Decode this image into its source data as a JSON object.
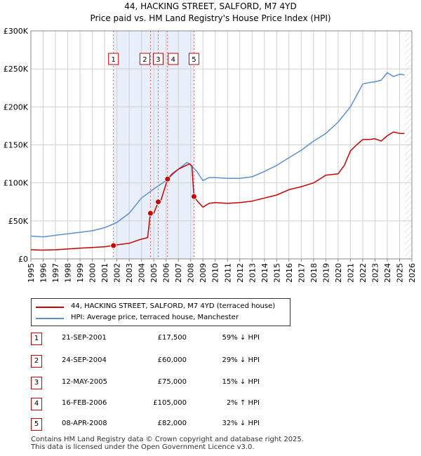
{
  "title_line1": "44, HACKING STREET, SALFORD, M7 4YD",
  "title_line2": "Price paid vs. HM Land Registry's House Price Index (HPI)",
  "colors": {
    "property": "#cc0000",
    "hpi": "#5b8fd4",
    "marker_border": "#cc0000",
    "shade": "#e8eefa"
  },
  "legend": {
    "property_label": "44, HACKING STREET, SALFORD, M7 4YD (terraced house)",
    "hpi_label": "HPI: Average price, terraced house, Manchester"
  },
  "chart_data": {
    "type": "line",
    "title": "44, HACKING STREET, SALFORD, M7 4YD — Price paid vs. HM Land Registry's House Price Index (HPI)",
    "xlabel": "",
    "ylabel": "",
    "xlim": [
      1995,
      2026
    ],
    "ylim": [
      0,
      300000
    ],
    "x_ticks": [
      "1995",
      "1996",
      "1997",
      "1998",
      "1999",
      "2000",
      "2001",
      "2002",
      "2003",
      "2004",
      "2005",
      "2006",
      "2007",
      "2008",
      "2009",
      "2010",
      "2011",
      "2012",
      "2013",
      "2014",
      "2015",
      "2016",
      "2017",
      "2018",
      "2019",
      "2020",
      "2021",
      "2022",
      "2023",
      "2024",
      "2025",
      "2026"
    ],
    "y_ticks": [
      {
        "value": 0,
        "label": "£0"
      },
      {
        "value": 50000,
        "label": "£50K"
      },
      {
        "value": 100000,
        "label": "£100K"
      },
      {
        "value": 150000,
        "label": "£150K"
      },
      {
        "value": 200000,
        "label": "£200K"
      },
      {
        "value": 250000,
        "label": "£250K"
      },
      {
        "value": 300000,
        "label": "£300K"
      }
    ],
    "grid": true,
    "series": [
      {
        "name": "44, HACKING STREET, SALFORD, M7 4YD (terraced house)",
        "x": [
          1995.0,
          1996.0,
          1997.0,
          1998.0,
          1999.0,
          2000.0,
          2001.0,
          2001.72,
          2002.0,
          2003.0,
          2003.8,
          2004.5,
          2004.72,
          2004.8,
          2005.0,
          2005.36,
          2005.6,
          2006.12,
          2006.5,
          2007.0,
          2007.5,
          2007.9,
          2008.1,
          2008.27,
          2008.6,
          2009.0,
          2009.5,
          2010.0,
          2011.0,
          2012.0,
          2013.0,
          2014.0,
          2015.0,
          2016.0,
          2017.0,
          2018.0,
          2019.0,
          2020.0,
          2020.5,
          2021.0,
          2021.5,
          2022.0,
          2022.5,
          2023.0,
          2023.5,
          2024.0,
          2024.5,
          2025.0,
          2025.4
        ],
        "values": [
          12000,
          11500,
          12000,
          13000,
          14000,
          15000,
          16000,
          17500,
          18500,
          20500,
          25000,
          28000,
          60000,
          58000,
          60000,
          75000,
          78000,
          105000,
          112000,
          118000,
          122000,
          125000,
          122000,
          82000,
          75000,
          68000,
          73000,
          74000,
          73000,
          74000,
          76000,
          80000,
          84000,
          91000,
          95000,
          100000,
          110000,
          112000,
          123000,
          142000,
          150000,
          157000,
          157000,
          158000,
          155000,
          162000,
          167000,
          165000,
          165000
        ]
      },
      {
        "name": "HPI: Average price, terraced house, Manchester",
        "x": [
          1995.0,
          1996.0,
          1997.0,
          1998.0,
          1999.0,
          2000.0,
          2001.0,
          2002.0,
          2003.0,
          2004.0,
          2005.0,
          2006.0,
          2007.0,
          2007.7,
          2008.0,
          2008.5,
          2009.0,
          2009.5,
          2010.0,
          2011.0,
          2012.0,
          2013.0,
          2014.0,
          2015.0,
          2016.0,
          2017.0,
          2018.0,
          2019.0,
          2020.0,
          2021.0,
          2021.5,
          2022.0,
          2022.5,
          2023.0,
          2023.5,
          2024.0,
          2024.5,
          2025.0,
          2025.4
        ],
        "values": [
          30000,
          29000,
          31000,
          33000,
          35000,
          37000,
          41000,
          48000,
          60000,
          80000,
          92000,
          103000,
          118000,
          127000,
          124000,
          115000,
          103000,
          107000,
          107000,
          106000,
          106000,
          108000,
          115000,
          123000,
          133000,
          143000,
          155000,
          165000,
          180000,
          200000,
          215000,
          230000,
          232000,
          233000,
          235000,
          245000,
          240000,
          243000,
          242000
        ]
      }
    ],
    "transactions": [
      {
        "id": "1",
        "x": 2001.72,
        "value": 17500
      },
      {
        "id": "2",
        "x": 2004.73,
        "value": 60000
      },
      {
        "id": "3",
        "x": 2005.36,
        "value": 75000
      },
      {
        "id": "4",
        "x": 2006.12,
        "value": 105000
      },
      {
        "id": "5",
        "x": 2008.27,
        "value": 82000
      }
    ],
    "shaded_ranges": [
      [
        2001.72,
        2008.27
      ]
    ]
  },
  "sales": [
    {
      "num": "1",
      "date": "21-SEP-2001",
      "price": "£17,500",
      "hpi": "59% ↓ HPI"
    },
    {
      "num": "2",
      "date": "24-SEP-2004",
      "price": "£60,000",
      "hpi": "29% ↓ HPI"
    },
    {
      "num": "3",
      "date": "12-MAY-2005",
      "price": "£75,000",
      "hpi": "15% ↓ HPI"
    },
    {
      "num": "4",
      "date": "16-FEB-2006",
      "price": "£105,000",
      "hpi": "2% ↑ HPI"
    },
    {
      "num": "5",
      "date": "08-APR-2008",
      "price": "£82,000",
      "hpi": "32% ↓ HPI"
    }
  ],
  "footer_line1": "Contains HM Land Registry data © Crown copyright and database right 2025.",
  "footer_line2": "This data is licensed under the Open Government Licence v3.0."
}
